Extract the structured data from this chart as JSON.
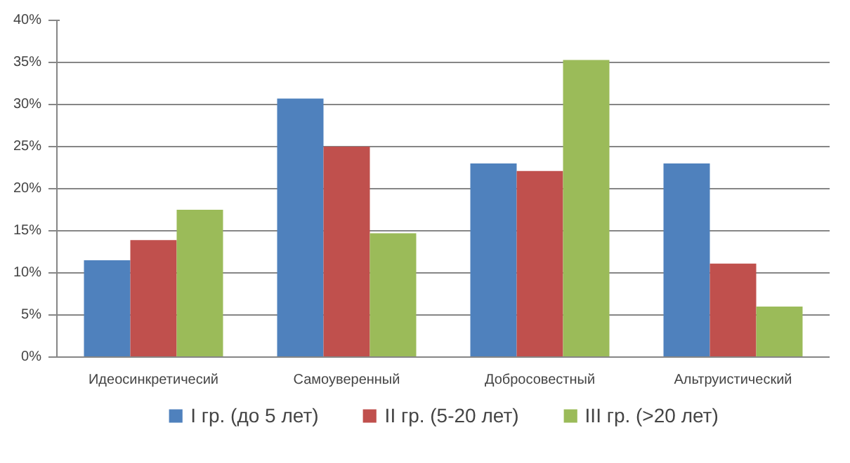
{
  "chart_data": {
    "type": "bar",
    "categories": [
      "Идеосинкретичесий",
      "Самоуверенный",
      "Добросовестный",
      "Альтруистический"
    ],
    "series": [
      {
        "name": "I гр. (до 5 лет)",
        "color": "#4f81bd",
        "values": [
          0.115,
          0.307,
          0.23,
          0.23
        ]
      },
      {
        "name": "II гр. (5-20 лет)",
        "color": "#c0504d",
        "values": [
          0.139,
          0.25,
          0.221,
          0.111
        ]
      },
      {
        "name": "III гр. (>20 лет)",
        "color": "#9bbb59",
        "values": [
          0.175,
          0.147,
          0.353,
          0.06
        ]
      }
    ],
    "ylim": [
      0,
      0.4
    ],
    "yticks": [
      {
        "value": 0,
        "label": "0%"
      },
      {
        "value": 0.05,
        "label": "5%"
      },
      {
        "value": 0.1,
        "label": "10%"
      },
      {
        "value": 0.15,
        "label": "15%"
      },
      {
        "value": 0.2,
        "label": "20%"
      },
      {
        "value": 0.25,
        "label": "25%"
      },
      {
        "value": 0.3,
        "label": "30%"
      },
      {
        "value": 0.35,
        "label": "35%"
      },
      {
        "value": 0.4,
        "label": "40%"
      }
    ],
    "grid": "y",
    "legend": "bottom"
  }
}
